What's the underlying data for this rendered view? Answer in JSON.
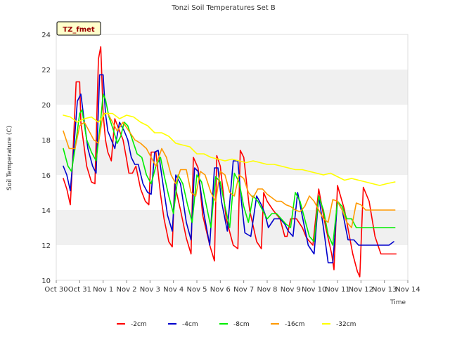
{
  "chart_data": {
    "type": "line",
    "title": "Tonzi Soil Temperatures Set B",
    "xlabel": "Time",
    "ylabel": "Soil Temperature (C)",
    "site_label": "TZ_fmet",
    "x_ticks": [
      "Oct 30",
      "Oct 31",
      "Nov 1",
      "Nov 2",
      "Nov 3",
      "Nov 4",
      "Nov 5",
      "Nov 6",
      "Nov 7",
      "Nov 8",
      "Nov 9",
      "Nov 10",
      "Nov 11",
      "Nov 12",
      "Nov 13",
      "Nov 14"
    ],
    "y_ticks": [
      10,
      12,
      14,
      16,
      18,
      20,
      22,
      24
    ],
    "xlim_days": [
      0,
      15
    ],
    "ylim": [
      10,
      24
    ],
    "grid": "horizontal alternating bands",
    "legend_position": "bottom",
    "colors": {
      "-2cm": "#ff0000",
      "-4cm": "#0000cc",
      "-8cm": "#00ee00",
      "-16cm": "#ff9900",
      "-32cm": "#ffff00"
    },
    "series": [
      {
        "name": "-2cm",
        "x": [
          0.3,
          0.45,
          0.6,
          0.7,
          0.85,
          1.0,
          1.05,
          1.15,
          1.3,
          1.5,
          1.65,
          1.8,
          1.9,
          2.0,
          2.1,
          2.2,
          2.35,
          2.5,
          2.7,
          2.85,
          3.0,
          3.1,
          3.25,
          3.4,
          3.6,
          3.8,
          3.95,
          4.05,
          4.25,
          4.45,
          4.6,
          4.8,
          4.95,
          5.05,
          5.3,
          5.55,
          5.75,
          5.85,
          6.05,
          6.25,
          6.55,
          6.75,
          6.85,
          7.0,
          7.25,
          7.55,
          7.75,
          7.85,
          8.0,
          8.25,
          8.55,
          8.75,
          8.85,
          9.0,
          9.25,
          9.55,
          9.75,
          9.85,
          10.0,
          10.25,
          10.5,
          10.65,
          10.75,
          10.95,
          11.2,
          11.5,
          11.75,
          11.85,
          12.0,
          12.3,
          12.65,
          12.85,
          12.95,
          13.1,
          13.35,
          13.6,
          13.85,
          13.95,
          14.1,
          14.3,
          14.5
        ],
        "values": [
          15.8,
          15.2,
          14.3,
          16.8,
          21.3,
          21.3,
          19.0,
          18.0,
          16.5,
          15.6,
          15.5,
          22.6,
          23.3,
          19.5,
          18.0,
          17.3,
          16.8,
          19.2,
          18.5,
          18.0,
          16.9,
          16.1,
          16.1,
          16.5,
          15.2,
          14.5,
          14.3,
          17.3,
          17.3,
          14.9,
          13.5,
          12.2,
          11.9,
          15.5,
          14.0,
          12.4,
          11.5,
          17.0,
          16.4,
          13.7,
          12.0,
          11.1,
          17.1,
          16.5,
          13.5,
          12.0,
          11.8,
          17.4,
          17.0,
          14.0,
          12.2,
          11.8,
          15.0,
          14.5,
          14.0,
          13.5,
          12.5,
          12.5,
          13.5,
          13.5,
          13.0,
          12.5,
          12.3,
          12.0,
          15.2,
          13.0,
          11.5,
          10.6,
          15.4,
          14.0,
          11.5,
          10.5,
          10.2,
          15.3,
          14.5,
          12.5,
          11.5,
          11.5,
          11.5,
          11.5,
          11.5
        ]
      },
      {
        "name": "-4cm",
        "x": [
          0.3,
          0.45,
          0.6,
          0.75,
          0.9,
          1.05,
          1.2,
          1.35,
          1.55,
          1.7,
          1.85,
          2.0,
          2.1,
          2.2,
          2.35,
          2.5,
          2.7,
          2.9,
          3.05,
          3.2,
          3.35,
          3.5,
          3.7,
          3.9,
          4.05,
          4.2,
          4.35,
          4.55,
          4.75,
          4.95,
          5.1,
          5.3,
          5.55,
          5.75,
          5.9,
          6.05,
          6.3,
          6.55,
          6.75,
          6.9,
          7.05,
          7.3,
          7.55,
          7.75,
          7.9,
          8.05,
          8.3,
          8.55,
          8.75,
          8.9,
          9.05,
          9.3,
          9.55,
          9.75,
          9.9,
          10.1,
          10.3,
          10.55,
          10.75,
          11.0,
          11.2,
          11.4,
          11.6,
          11.8,
          12.0,
          12.2,
          12.45,
          12.7,
          12.9,
          13.05,
          13.25,
          13.45,
          13.65,
          13.85,
          14.05,
          14.2,
          14.4
        ],
        "values": [
          16.5,
          16.0,
          15.1,
          17.5,
          20.2,
          20.6,
          19.0,
          17.5,
          16.5,
          16.1,
          21.7,
          21.7,
          19.5,
          18.5,
          18.0,
          17.5,
          19.0,
          18.5,
          18.0,
          17.0,
          16.6,
          16.6,
          15.5,
          15.0,
          14.9,
          17.3,
          17.4,
          15.5,
          13.7,
          12.8,
          16.0,
          15.5,
          13.3,
          12.3,
          16.4,
          16.2,
          13.8,
          12.0,
          16.4,
          16.4,
          14.5,
          12.8,
          16.8,
          16.8,
          14.5,
          12.7,
          12.5,
          14.8,
          14.3,
          13.8,
          13.0,
          13.5,
          13.5,
          13.2,
          12.8,
          12.5,
          15.0,
          13.3,
          12.0,
          11.5,
          14.8,
          13.0,
          11.0,
          11.0,
          14.5,
          14.0,
          12.3,
          12.3,
          12.0,
          12.0,
          12.0,
          12.0,
          12.0,
          12.0,
          12.0,
          12.0,
          12.2
        ]
      },
      {
        "name": "-8cm",
        "x": [
          0.3,
          0.5,
          0.65,
          0.8,
          1.0,
          1.1,
          1.3,
          1.5,
          1.7,
          1.85,
          2.0,
          2.1,
          2.25,
          2.45,
          2.6,
          2.75,
          2.9,
          3.05,
          3.25,
          3.45,
          3.65,
          3.85,
          4.05,
          4.25,
          4.45,
          4.6,
          4.8,
          5.0,
          5.2,
          5.4,
          5.6,
          5.8,
          6.0,
          6.2,
          6.4,
          6.6,
          6.8,
          7.0,
          7.2,
          7.4,
          7.6,
          7.8,
          8.0,
          8.2,
          8.4,
          8.6,
          8.8,
          9.0,
          9.2,
          9.4,
          9.6,
          9.8,
          10.0,
          10.2,
          10.4,
          10.6,
          10.8,
          11.0,
          11.2,
          11.4,
          11.6,
          11.8,
          12.0,
          12.2,
          12.4,
          12.6,
          12.8,
          13.0,
          13.2,
          13.4,
          13.6,
          13.8,
          14.0,
          14.2,
          14.45
        ],
        "values": [
          17.5,
          16.5,
          16.2,
          17.5,
          19.5,
          19.7,
          18.0,
          17.3,
          16.8,
          18.5,
          20.6,
          20.3,
          19.3,
          18.5,
          17.8,
          18.2,
          19.0,
          18.8,
          18.0,
          17.2,
          17.0,
          16.0,
          15.5,
          16.5,
          17.0,
          16.0,
          14.8,
          13.8,
          16.0,
          15.5,
          14.3,
          13.3,
          16.0,
          15.6,
          14.3,
          13.0,
          15.9,
          15.6,
          14.2,
          13.0,
          16.1,
          15.6,
          14.2,
          13.3,
          14.8,
          14.5,
          14.0,
          13.5,
          13.8,
          13.8,
          13.5,
          13.2,
          13.0,
          15.0,
          14.5,
          13.5,
          12.5,
          12.2,
          14.8,
          14.0,
          12.6,
          12.0,
          14.5,
          14.2,
          13.5,
          13.5,
          13.0,
          13.0,
          13.0,
          13.0,
          13.0,
          13.0,
          13.0,
          13.0,
          13.0
        ]
      },
      {
        "name": "-16cm",
        "x": [
          0.3,
          0.55,
          0.8,
          1.0,
          1.2,
          1.4,
          1.6,
          1.8,
          2.0,
          2.2,
          2.4,
          2.6,
          2.85,
          3.1,
          3.35,
          3.6,
          3.85,
          4.05,
          4.25,
          4.5,
          4.7,
          4.9,
          5.1,
          5.3,
          5.55,
          5.75,
          5.95,
          6.15,
          6.35,
          6.6,
          6.8,
          7.0,
          7.2,
          7.4,
          7.6,
          7.8,
          8.0,
          8.2,
          8.4,
          8.6,
          8.8,
          9.0,
          9.2,
          9.4,
          9.6,
          9.8,
          10.0,
          10.2,
          10.4,
          10.6,
          10.8,
          11.0,
          11.2,
          11.4,
          11.6,
          11.8,
          12.0,
          12.2,
          12.4,
          12.6,
          12.8,
          13.0,
          13.2,
          13.4,
          13.6,
          13.8,
          14.0,
          14.2,
          14.45
        ],
        "values": [
          18.5,
          17.5,
          17.5,
          18.8,
          19.0,
          18.5,
          18.0,
          17.8,
          19.5,
          19.5,
          19.0,
          18.5,
          19.0,
          18.5,
          18.0,
          17.8,
          17.5,
          17.0,
          16.5,
          17.5,
          17.0,
          16.0,
          15.5,
          16.3,
          16.3,
          15.0,
          14.8,
          16.2,
          16.0,
          15.0,
          14.5,
          16.2,
          16.0,
          15.0,
          14.8,
          16.0,
          15.8,
          15.0,
          14.7,
          15.2,
          15.2,
          14.9,
          14.7,
          14.5,
          14.5,
          14.3,
          14.2,
          14.0,
          13.9,
          14.2,
          14.8,
          14.5,
          14.0,
          13.5,
          13.3,
          14.6,
          14.5,
          14.0,
          13.3,
          13.0,
          14.4,
          14.3,
          14.0,
          14.0,
          14.0,
          14.0,
          14.0,
          14.0,
          14.0
        ]
      },
      {
        "name": "-32cm",
        "x": [
          0.3,
          0.6,
          0.9,
          1.2,
          1.5,
          1.8,
          2.1,
          2.4,
          2.7,
          3.0,
          3.3,
          3.6,
          3.9,
          4.2,
          4.5,
          4.8,
          5.1,
          5.4,
          5.7,
          6.0,
          6.3,
          6.6,
          6.9,
          7.2,
          7.5,
          7.8,
          8.1,
          8.4,
          8.7,
          9.0,
          9.3,
          9.6,
          9.9,
          10.2,
          10.5,
          10.8,
          11.1,
          11.4,
          11.7,
          12.0,
          12.3,
          12.6,
          12.9,
          13.2,
          13.5,
          13.8,
          14.1,
          14.45
        ],
        "values": [
          19.4,
          19.3,
          19.0,
          19.2,
          19.3,
          19.0,
          19.5,
          19.5,
          19.2,
          19.4,
          19.3,
          19.0,
          18.8,
          18.4,
          18.4,
          18.2,
          17.8,
          17.7,
          17.6,
          17.2,
          17.2,
          17.0,
          16.9,
          16.8,
          16.9,
          16.8,
          16.7,
          16.8,
          16.7,
          16.6,
          16.6,
          16.5,
          16.4,
          16.3,
          16.3,
          16.2,
          16.1,
          16.0,
          16.1,
          15.9,
          15.7,
          15.8,
          15.7,
          15.6,
          15.5,
          15.4,
          15.5,
          15.6
        ]
      }
    ]
  }
}
